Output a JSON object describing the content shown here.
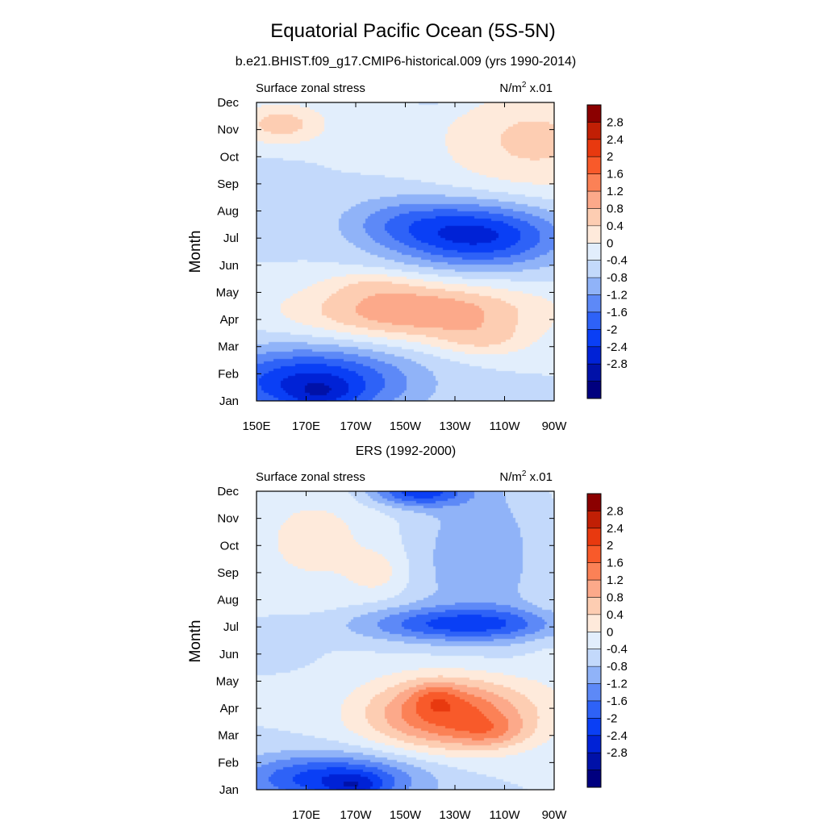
{
  "figure": {
    "title": "Equatorial Pacific Ocean (5S-5N)"
  },
  "chart_data": [
    {
      "type": "heatmap",
      "subtitle": "b.e21.BHIST.f09_g17.CMIP6-historical.009 (yrs 1990-2014)",
      "left_label": "Surface zonal stress",
      "units_label": "N/m",
      "units_sup": "2",
      "units_suffix": " x.01",
      "ylabel": "Month",
      "xlabel": "",
      "x_ticks": [
        "150E",
        "170E",
        "170W",
        "150W",
        "130W",
        "110W",
        "90W"
      ],
      "x_tick_values": [
        150,
        170,
        190,
        210,
        230,
        250,
        270
      ],
      "xlim": [
        150,
        270
      ],
      "y_ticks": [
        "Jan",
        "Feb",
        "Mar",
        "Apr",
        "May",
        "Jun",
        "Jul",
        "Aug",
        "Sep",
        "Oct",
        "Nov",
        "Dec"
      ],
      "ylim": [
        1,
        12
      ],
      "anomalies": [
        {
          "lon": 172,
          "month": 1.7,
          "slon": 28,
          "smon": 0.9,
          "amp": -2.1
        },
        {
          "lon": 176,
          "month": 1.2,
          "slon": 10,
          "smon": 0.4,
          "amp": -0.6
        },
        {
          "lon": 215,
          "month": 4.3,
          "slon": 34,
          "smon": 0.75,
          "amp": 1.6
        },
        {
          "lon": 242,
          "month": 3.2,
          "slon": 14,
          "smon": 0.45,
          "amp": 0.6
        },
        {
          "lon": 196,
          "month": 5.3,
          "slon": 14,
          "smon": 0.35,
          "amp": 0.4
        },
        {
          "lon": 240,
          "month": 7.1,
          "slon": 24,
          "smon": 0.85,
          "amp": -2.1
        },
        {
          "lon": 207,
          "month": 7.6,
          "slon": 18,
          "smon": 0.7,
          "amp": -0.7
        },
        {
          "lon": 160,
          "month": 11.2,
          "slon": 13,
          "smon": 0.55,
          "amp": 1.0
        },
        {
          "lon": 262,
          "month": 10.6,
          "slon": 28,
          "smon": 1.5,
          "amp": 0.9
        },
        {
          "lon": 156,
          "month": 8.3,
          "slon": 10,
          "smon": 0.9,
          "amp": -0.35
        },
        {
          "lon": 225,
          "month": 12.2,
          "slon": 10,
          "smon": 0.35,
          "amp": -0.3
        }
      ],
      "colorbar": {
        "labels": [
          "2.8",
          "2.4",
          "2",
          "1.6",
          "1.2",
          "0.8",
          "0.4",
          "0",
          "-0.4",
          "-0.8",
          "-1.2",
          "-1.6",
          "-2",
          "-2.4",
          "-2.8"
        ],
        "levels": [
          -2.8,
          -2.4,
          -2.0,
          -1.6,
          -1.2,
          -0.8,
          -0.4,
          0.0,
          0.4,
          0.8,
          1.2,
          1.6,
          2.0,
          2.4,
          2.8
        ],
        "colors": [
          "#00007f",
          "#0011a8",
          "#0022d6",
          "#0a3ff5",
          "#2e62f7",
          "#5d89f7",
          "#90b3f8",
          "#c3d9fb",
          "#e2eefc",
          "#feeadb",
          "#fdcdb2",
          "#fca98a",
          "#fb8156",
          "#f85a2a",
          "#e8390f",
          "#c11f05",
          "#8b0000"
        ]
      }
    },
    {
      "type": "heatmap",
      "subtitle": "ERS (1992-2000)",
      "left_label": "Surface zonal stress",
      "units_label": "N/m",
      "units_sup": "2",
      "units_suffix": " x.01",
      "ylabel": "Month",
      "xlabel": "",
      "x_ticks": [
        "170E",
        "170W",
        "150W",
        "130W",
        "110W",
        "90W"
      ],
      "x_tick_values": [
        170,
        190,
        210,
        230,
        250,
        270
      ],
      "xlim": [
        150,
        270
      ],
      "y_ticks": [
        "Jan",
        "Feb",
        "Mar",
        "Apr",
        "May",
        "Jun",
        "Jul",
        "Aug",
        "Sep",
        "Oct",
        "Nov",
        "Dec"
      ],
      "ylim": [
        1,
        12
      ],
      "anomalies": [
        {
          "lon": 180,
          "month": 1.4,
          "slon": 26,
          "smon": 0.65,
          "amp": -1.9
        },
        {
          "lon": 190,
          "month": 1.1,
          "slon": 8,
          "smon": 0.35,
          "amp": -0.8
        },
        {
          "lon": 228,
          "month": 3.8,
          "slon": 24,
          "smon": 0.95,
          "amp": 2.2
        },
        {
          "lon": 245,
          "month": 3.1,
          "slon": 10,
          "smon": 0.4,
          "amp": 0.6
        },
        {
          "lon": 222,
          "month": 4.4,
          "slon": 7,
          "smon": 0.4,
          "amp": 0.6
        },
        {
          "lon": 233,
          "month": 7.1,
          "slon": 30,
          "smon": 0.45,
          "amp": -1.6
        },
        {
          "lon": 215,
          "month": 12.0,
          "slon": 14,
          "smon": 0.4,
          "amp": -1.8
        },
        {
          "lon": 240,
          "month": 9.6,
          "slon": 22,
          "smon": 2.0,
          "amp": -0.7
        },
        {
          "lon": 175,
          "month": 10.2,
          "slon": 25,
          "smon": 1.8,
          "amp": 0.5
        },
        {
          "lon": 200,
          "month": 9.0,
          "slon": 8,
          "smon": 0.6,
          "amp": 0.45
        },
        {
          "lon": 160,
          "month": 6.5,
          "slon": 9,
          "smon": 0.5,
          "amp": -0.4
        },
        {
          "lon": 268,
          "month": 9.0,
          "slon": 8,
          "smon": 3.0,
          "amp": 0.25
        }
      ],
      "colorbar": {
        "labels": [
          "2.8",
          "2.4",
          "2",
          "1.6",
          "1.2",
          "0.8",
          "0.4",
          "0",
          "-0.4",
          "-0.8",
          "-1.2",
          "-1.6",
          "-2",
          "-2.4",
          "-2.8"
        ],
        "levels": [
          -2.8,
          -2.4,
          -2.0,
          -1.6,
          -1.2,
          -0.8,
          -0.4,
          0.0,
          0.4,
          0.8,
          1.2,
          1.6,
          2.0,
          2.4,
          2.8
        ],
        "colors": [
          "#00007f",
          "#0011a8",
          "#0022d6",
          "#0a3ff5",
          "#2e62f7",
          "#5d89f7",
          "#90b3f8",
          "#c3d9fb",
          "#e2eefc",
          "#feeadb",
          "#fdcdb2",
          "#fca98a",
          "#fb8156",
          "#f85a2a",
          "#e8390f",
          "#c11f05",
          "#8b0000"
        ]
      }
    }
  ]
}
